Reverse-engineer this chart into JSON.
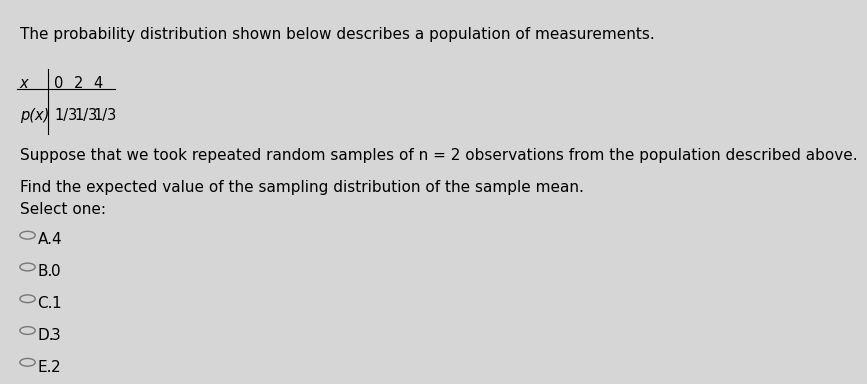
{
  "background_color": "#d6d6d6",
  "text_color": "#000000",
  "title_line": "The probability distribution shown below describes a population of measurements.",
  "table_headers": [
    "x",
    "0",
    "2",
    "4"
  ],
  "table_row": [
    "p(x)",
    "1/3",
    "1/3",
    "1/3"
  ],
  "paragraph_line1": "Suppose that we took repeated random samples of n = 2 observations from the population described above.",
  "paragraph_line2": "Find the expected value of the sampling distribution of the sample mean.",
  "select_one_label": "Select one:",
  "options": [
    {
      "letter": "A.",
      "value": "4"
    },
    {
      "letter": "B.",
      "value": "0"
    },
    {
      "letter": "C.",
      "value": "1"
    },
    {
      "letter": "D.",
      "value": "3"
    },
    {
      "letter": "E.",
      "value": "2"
    }
  ],
  "font_size_title": 11,
  "font_size_body": 11,
  "font_size_table": 10.5,
  "font_size_options": 11,
  "circle_color": "#777777"
}
